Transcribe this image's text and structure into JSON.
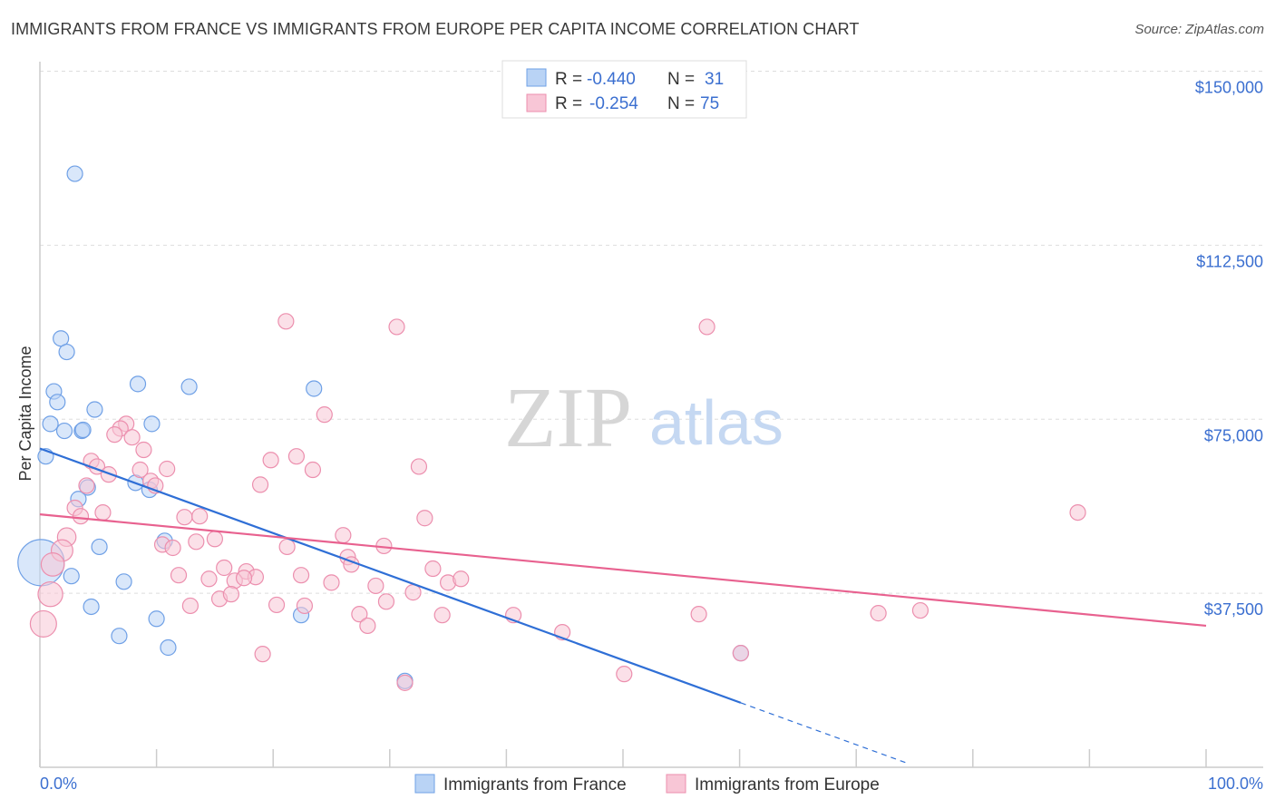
{
  "title": "IMMIGRANTS FROM FRANCE VS IMMIGRANTS FROM EUROPE PER CAPITA INCOME CORRELATION CHART",
  "source": "Source: ZipAtlas.com",
  "watermark": {
    "zip": "ZIP",
    "atlas": "atlas"
  },
  "chart_data": {
    "type": "scatter",
    "title": "IMMIGRANTS FROM FRANCE VS IMMIGRANTS FROM EUROPE PER CAPITA INCOME CORRELATION CHART",
    "xlabel": "",
    "ylabel": "Per Capita Income",
    "xlim": [
      0,
      100
    ],
    "ylim": [
      0,
      150000
    ],
    "x_tick_labels": [
      "0.0%",
      "100.0%"
    ],
    "y_ticks": [
      37500,
      75000,
      112500,
      150000
    ],
    "y_tick_labels": [
      "$37,500",
      "$75,000",
      "$112,500",
      "$150,000"
    ],
    "grid": true,
    "legend_position": "top-center",
    "stats": [
      {
        "r_label": "R =",
        "r": "-0.440",
        "n_label": "N =",
        "n": "31"
      },
      {
        "r_label": "R =",
        "r": "-0.254",
        "n_label": "N =",
        "n": "75"
      }
    ],
    "series": [
      {
        "name": "Immigrants from France",
        "color": "#6fa0e6",
        "fill": "#b9d3f5",
        "line_color": "#2f6fd6",
        "trend": {
          "x0": 0,
          "y0": 68700,
          "x1": 60.1,
          "y1": 13900,
          "dash_to_x": 74.3
        },
        "points": [
          [
            3.0,
            127900,
            1
          ],
          [
            1.8,
            92400,
            1
          ],
          [
            2.3,
            89500,
            1
          ],
          [
            1.2,
            81000,
            1
          ],
          [
            1.5,
            78700,
            1
          ],
          [
            4.7,
            77100,
            1
          ],
          [
            0.9,
            74000,
            1
          ],
          [
            2.1,
            72500,
            1
          ],
          [
            3.6,
            72500,
            1
          ],
          [
            3.7,
            72700,
            1
          ],
          [
            8.4,
            82600,
            1
          ],
          [
            12.8,
            82000,
            1
          ],
          [
            23.5,
            81600,
            1
          ],
          [
            9.6,
            74000,
            1
          ],
          [
            0.5,
            67000,
            1
          ],
          [
            4.1,
            60300,
            1
          ],
          [
            8.2,
            61300,
            1
          ],
          [
            9.4,
            59800,
            1
          ],
          [
            3.3,
            57800,
            1
          ],
          [
            5.1,
            47500,
            1
          ],
          [
            10.7,
            48800,
            1
          ],
          [
            2.7,
            41200,
            1
          ],
          [
            7.2,
            40000,
            1
          ],
          [
            0.1,
            44100,
            3
          ],
          [
            4.4,
            34600,
            1
          ],
          [
            10.0,
            32000,
            1
          ],
          [
            6.8,
            28300,
            1
          ],
          [
            11.0,
            25800,
            1
          ],
          [
            22.4,
            32800,
            1
          ],
          [
            31.3,
            18600,
            1
          ],
          [
            60.1,
            24600,
            1
          ]
        ]
      },
      {
        "name": "Immigrants from Europe",
        "color": "#ec8fae",
        "fill": "#f8c6d6",
        "line_color": "#e8618f",
        "trend": {
          "x0": 0,
          "y0": 54500,
          "x1": 100,
          "y1": 30500
        },
        "points": [
          [
            21.1,
            96100,
            1
          ],
          [
            30.6,
            94900,
            1
          ],
          [
            57.2,
            94900,
            1
          ],
          [
            24.4,
            76000,
            1
          ],
          [
            7.4,
            74000,
            1
          ],
          [
            6.9,
            73000,
            1
          ],
          [
            6.4,
            71700,
            1
          ],
          [
            7.9,
            71100,
            1
          ],
          [
            8.9,
            68400,
            1
          ],
          [
            4.4,
            66000,
            1
          ],
          [
            4.9,
            64800,
            1
          ],
          [
            5.9,
            63100,
            1
          ],
          [
            8.6,
            64100,
            1
          ],
          [
            10.9,
            64300,
            1
          ],
          [
            19.8,
            66200,
            1
          ],
          [
            22.0,
            67000,
            1
          ],
          [
            23.4,
            64100,
            1
          ],
          [
            32.5,
            64800,
            1
          ],
          [
            4.0,
            60700,
            1
          ],
          [
            9.5,
            61700,
            1
          ],
          [
            9.9,
            60700,
            1
          ],
          [
            18.9,
            60900,
            1
          ],
          [
            3.0,
            55900,
            1
          ],
          [
            3.5,
            54100,
            1
          ],
          [
            5.4,
            54900,
            1
          ],
          [
            12.4,
            53900,
            1
          ],
          [
            13.7,
            54100,
            1
          ],
          [
            33.0,
            53700,
            1
          ],
          [
            89.0,
            54900,
            1
          ],
          [
            2.3,
            49600,
            1.2
          ],
          [
            1.9,
            46700,
            1.4
          ],
          [
            10.5,
            48000,
            1
          ],
          [
            11.4,
            47300,
            1
          ],
          [
            13.4,
            48600,
            1
          ],
          [
            15.0,
            49200,
            1
          ],
          [
            21.2,
            47500,
            1
          ],
          [
            26.0,
            50000,
            1
          ],
          [
            29.5,
            47700,
            1
          ],
          [
            26.4,
            45300,
            1
          ],
          [
            26.7,
            43700,
            1
          ],
          [
            1.1,
            43700,
            1.5
          ],
          [
            11.9,
            41400,
            1
          ],
          [
            14.5,
            40600,
            1
          ],
          [
            15.8,
            43000,
            1
          ],
          [
            17.7,
            42200,
            1
          ],
          [
            18.5,
            41000,
            1
          ],
          [
            16.7,
            40200,
            1
          ],
          [
            17.5,
            40800,
            1
          ],
          [
            22.4,
            41400,
            1
          ],
          [
            25.0,
            39800,
            1
          ],
          [
            33.7,
            42800,
            1
          ],
          [
            35.0,
            39800,
            1
          ],
          [
            36.1,
            40600,
            1
          ],
          [
            0.9,
            37300,
            1.6
          ],
          [
            0.3,
            30900,
            1.7
          ],
          [
            12.9,
            34800,
            1
          ],
          [
            15.4,
            36300,
            1
          ],
          [
            16.4,
            37300,
            1
          ],
          [
            20.3,
            35000,
            1
          ],
          [
            22.7,
            34800,
            1
          ],
          [
            28.8,
            39100,
            1
          ],
          [
            32.0,
            37700,
            1
          ],
          [
            29.7,
            35700,
            1
          ],
          [
            27.4,
            33000,
            1
          ],
          [
            28.1,
            30500,
            1
          ],
          [
            34.5,
            32800,
            1
          ],
          [
            40.6,
            32800,
            1
          ],
          [
            56.5,
            33000,
            1
          ],
          [
            71.9,
            33200,
            1
          ],
          [
            75.5,
            33800,
            1
          ],
          [
            44.8,
            29100,
            1
          ],
          [
            19.1,
            24400,
            1
          ],
          [
            50.1,
            20100,
            1
          ],
          [
            31.3,
            18200,
            1
          ],
          [
            60.1,
            24600,
            1
          ]
        ]
      }
    ]
  }
}
